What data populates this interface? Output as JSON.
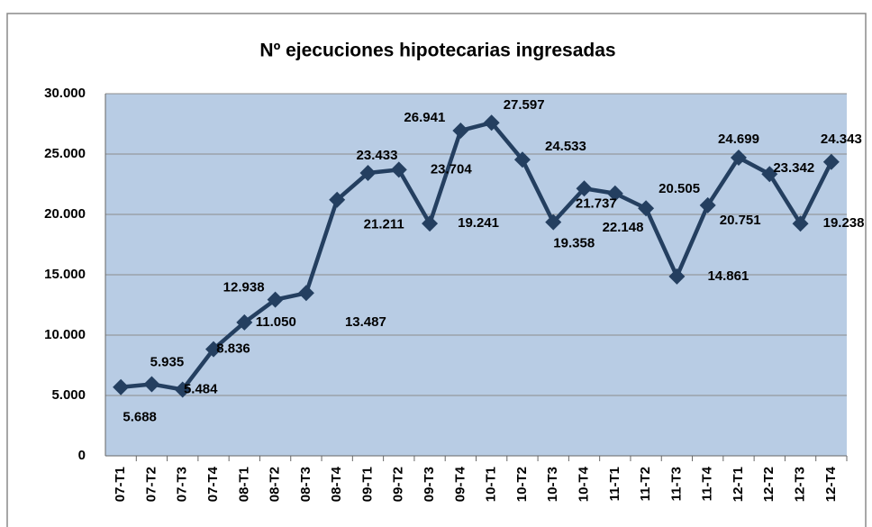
{
  "chart_data": {
    "type": "line",
    "title": "Nº ejecuciones hipotecarias ingresadas",
    "categories": [
      "07-T1",
      "07-T2",
      "07-T3",
      "07-T4",
      "08-T1",
      "08-T2",
      "08-T3",
      "08-T4",
      "09-T1",
      "09-T2",
      "09-T3",
      "09-T4",
      "10-T1",
      "10-T2",
      "10-T3",
      "10-T4",
      "11-T1",
      "11-T2",
      "11-T3",
      "11-T4",
      "12-T1",
      "12-T2",
      "12-T3",
      "12-T4"
    ],
    "values": [
      5688,
      5935,
      5484,
      8836,
      11050,
      12938,
      13487,
      21211,
      23433,
      23704,
      19241,
      26941,
      27597,
      24533,
      19358,
      22148,
      21737,
      20505,
      14861,
      20751,
      24699,
      23342,
      19238,
      24343
    ],
    "value_labels": [
      "5.688",
      "5.935",
      "5.484",
      "8.836",
      "11.050",
      "12.938",
      "13.487",
      "21.211",
      "23.433",
      "23.704",
      "19.241",
      "26.941",
      "27.597",
      "24.533",
      "19.358",
      "22.148",
      "21.737",
      "20.505",
      "14.861",
      "20.751",
      "24.699",
      "23.342",
      "19.238",
      "24.343"
    ],
    "color": "#243f60",
    "ylim": [
      0,
      30000
    ],
    "yticks": [
      0,
      {
        "value": 5000,
        "label": "5.000"
      },
      {
        "value": 10000,
        "label": "10.000"
      },
      {
        "value": 15000,
        "label": "15.000"
      },
      {
        "value": 20000,
        "label": "20.000"
      },
      {
        "value": 25000,
        "label": "25.000"
      },
      {
        "value": 30000,
        "label": "30.000"
      }
    ],
    "grid": true
  }
}
